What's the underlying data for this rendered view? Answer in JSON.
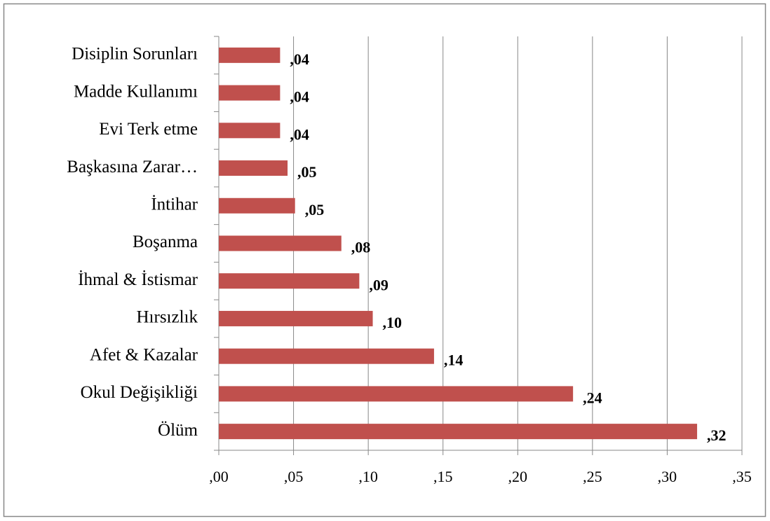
{
  "chart_data": {
    "type": "bar",
    "orientation": "horizontal",
    "categories": [
      "Disiplin Sorunları",
      "Madde Kullanımı",
      "Evi Terk etme",
      "Başkasına Zarar…",
      "İntihar",
      "Boşanma",
      "İhmal & İstismar",
      "Hırsızlık",
      "Afet & Kazalar",
      "Okul Değişikliği",
      "Ölüm"
    ],
    "values": [
      0.041,
      0.041,
      0.041,
      0.046,
      0.051,
      0.082,
      0.094,
      0.103,
      0.144,
      0.237,
      0.32
    ],
    "value_labels": [
      ",04",
      ",04",
      ",04",
      ",05",
      ",05",
      ",08",
      ",09",
      ",10",
      ",14",
      ",24",
      ",32"
    ],
    "color": "#c0504d",
    "xlim": [
      0,
      0.35
    ],
    "xticks": [
      {
        "value": 0,
        "label": ",00"
      },
      {
        "value": 0.05,
        "label": ",05"
      },
      {
        "value": 0.1,
        "label": ",10"
      },
      {
        "value": 0.15,
        "label": ",15"
      },
      {
        "value": 0.2,
        "label": ",20"
      },
      {
        "value": 0.25,
        "label": ",25"
      },
      {
        "value": 0.3,
        "label": ",30"
      },
      {
        "value": 0.35,
        "label": ",35"
      }
    ],
    "grid": true
  }
}
